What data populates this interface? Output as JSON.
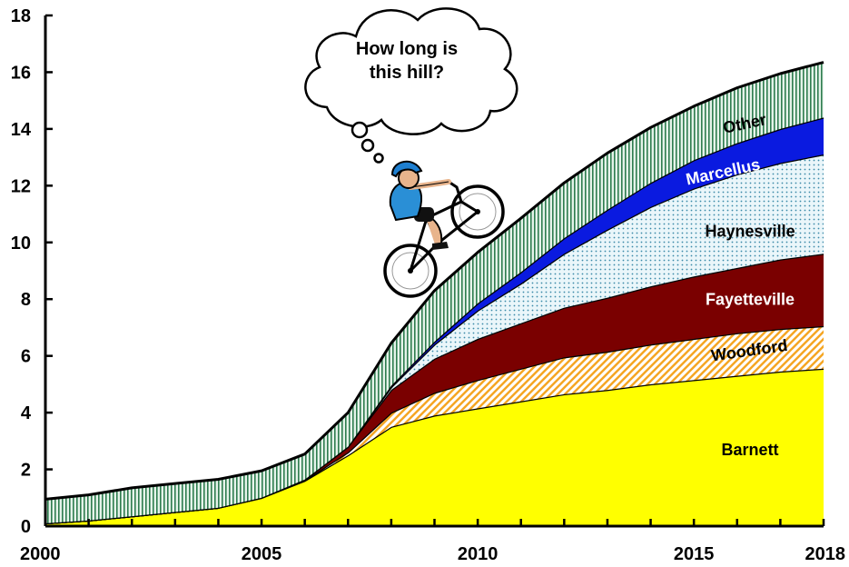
{
  "chart_data": {
    "type": "area",
    "stacked": true,
    "title": "",
    "xlabel": "",
    "ylabel": "",
    "xlim": [
      2000,
      2018
    ],
    "ylim": [
      0,
      18
    ],
    "x_ticks": [
      2000,
      2005,
      2010,
      2015,
      2018
    ],
    "y_ticks": [
      0,
      2,
      4,
      6,
      8,
      10,
      12,
      14,
      16,
      18
    ],
    "grid": false,
    "legend": "inline labels",
    "x": [
      2000,
      2001,
      2002,
      2003,
      2004,
      2005,
      2006,
      2007,
      2008,
      2009,
      2010,
      2011,
      2012,
      2013,
      2014,
      2015,
      2016,
      2017,
      2018
    ],
    "series": [
      {
        "name": "Barnett",
        "color": "#ffff00",
        "pattern": "solid",
        "values": [
          0.1,
          0.2,
          0.35,
          0.5,
          0.65,
          1.0,
          1.6,
          2.5,
          3.5,
          3.9,
          4.15,
          4.4,
          4.65,
          4.8,
          5.0,
          5.15,
          5.3,
          5.45,
          5.55
        ]
      },
      {
        "name": "Woodford",
        "color": "#f5a623",
        "pattern": "diagonal",
        "values": [
          0,
          0,
          0,
          0,
          0,
          0,
          0.02,
          0.1,
          0.5,
          0.8,
          1.0,
          1.15,
          1.3,
          1.35,
          1.4,
          1.45,
          1.5,
          1.5,
          1.5
        ]
      },
      {
        "name": "Fayetteville",
        "color": "#7a0000",
        "pattern": "solid",
        "values": [
          0,
          0,
          0,
          0,
          0,
          0,
          0.02,
          0.2,
          0.8,
          1.2,
          1.45,
          1.6,
          1.75,
          1.9,
          2.05,
          2.2,
          2.3,
          2.45,
          2.55
        ]
      },
      {
        "name": "Haynesville",
        "color": "#cfe8f0",
        "pattern": "dots",
        "values": [
          0,
          0,
          0,
          0,
          0,
          0,
          0,
          0,
          0.1,
          0.5,
          1.0,
          1.4,
          1.9,
          2.4,
          2.8,
          3.1,
          3.3,
          3.4,
          3.5
        ]
      },
      {
        "name": "Marcellus",
        "color": "#0a1ae0",
        "pattern": "solid",
        "values": [
          0,
          0,
          0,
          0,
          0,
          0,
          0,
          0,
          0.05,
          0.1,
          0.25,
          0.4,
          0.55,
          0.7,
          0.85,
          1.0,
          1.1,
          1.2,
          1.3
        ]
      },
      {
        "name": "Other",
        "color": "#2e8b57",
        "pattern": "vertical",
        "values": [
          0.85,
          0.9,
          1.0,
          1.0,
          1.0,
          0.95,
          0.9,
          1.2,
          1.5,
          1.8,
          1.8,
          1.9,
          1.95,
          2.0,
          1.95,
          1.9,
          1.95,
          1.95,
          1.95
        ]
      }
    ],
    "labels": {
      "Barnett": {
        "x": 2016.3,
        "y": 2.5,
        "color": "#000000",
        "rotate": 0
      },
      "Woodford": {
        "x": 2016.3,
        "y": 6.0,
        "color": "#000000",
        "rotate": -8
      },
      "Fayetteville": {
        "x": 2016.3,
        "y": 7.8,
        "color": "#ffffff",
        "rotate": 0
      },
      "Haynesville": {
        "x": 2016.3,
        "y": 10.2,
        "color": "#000000",
        "rotate": 0
      },
      "Marcellus": {
        "x": 2015.7,
        "y": 12.3,
        "color": "#ffffff",
        "rotate": -12
      },
      "Other": {
        "x": 2016.2,
        "y": 14.0,
        "color": "#000000",
        "rotate": -12
      }
    },
    "annotation": {
      "lines": [
        "How long is",
        "this hill?"
      ],
      "illustration": "cyclist-riding-uphill"
    }
  }
}
